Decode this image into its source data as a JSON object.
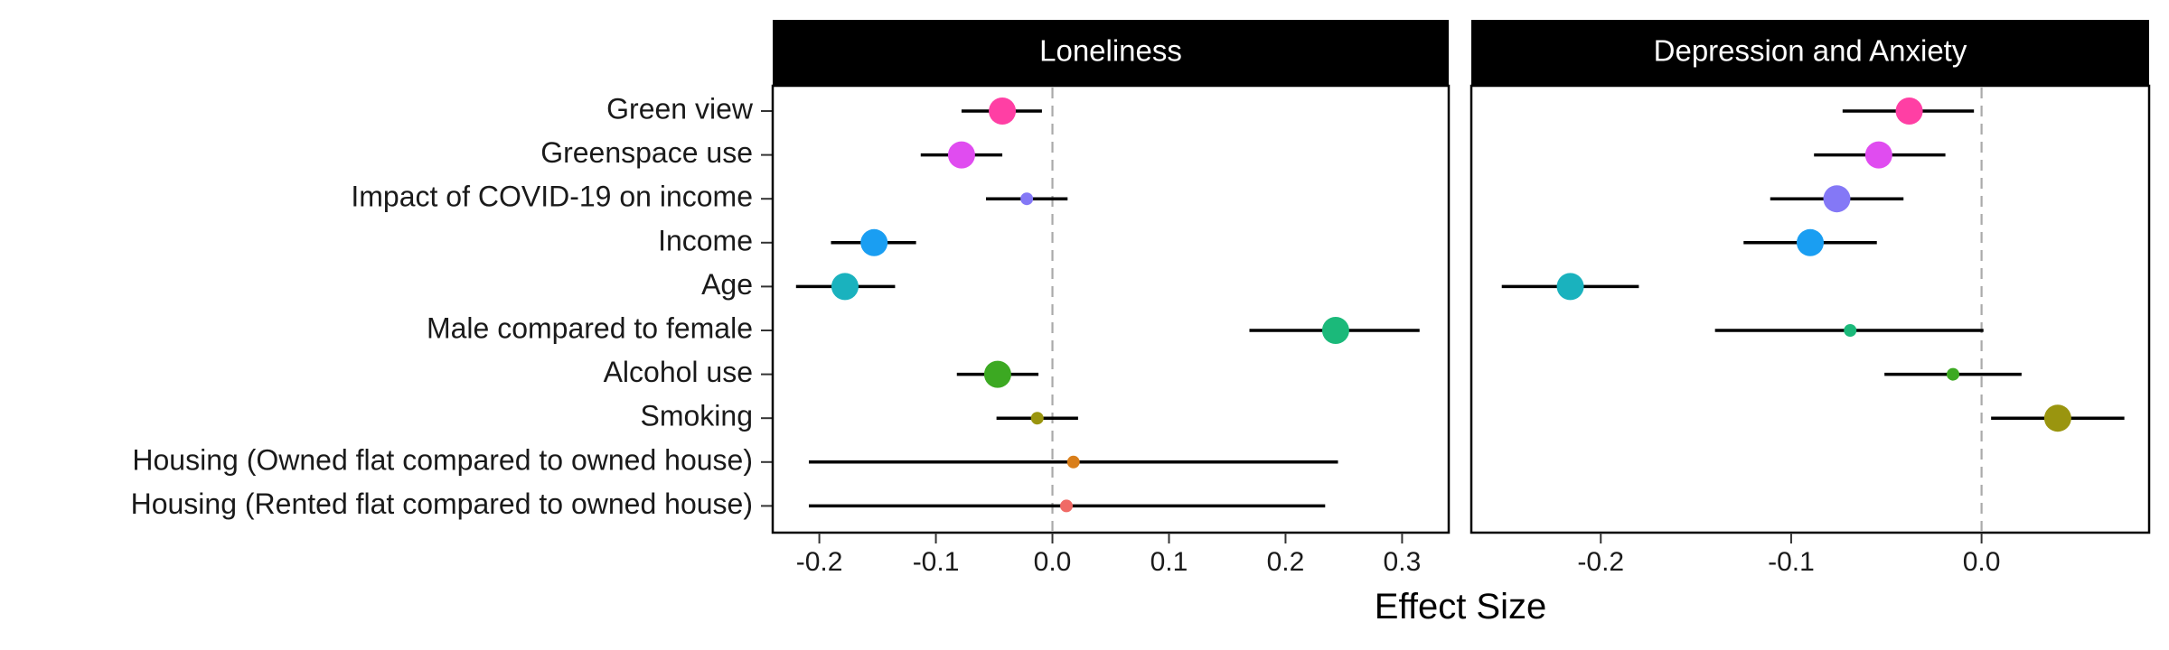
{
  "chart_data": {
    "type": "forest",
    "xlabel": "Effect Size",
    "categories": [
      "Green view",
      "Greenspace use",
      "Impact of COVID-19 on income",
      "Income",
      "Age",
      "Male compared to female",
      "Alcohol use",
      "Smoking",
      "Housing (Owned flat compared to owned house)",
      "Housing (Rented flat compared to owned house)"
    ],
    "colors": {
      "Green view": "#ff3fa4",
      "Greenspace use": "#e04cf0",
      "Impact of COVID-19 on income": "#8478f6",
      "Income": "#1a9ef2",
      "Age": "#1ab2be",
      "Male compared to female": "#1bb97a",
      "Alcohol use": "#3ca922",
      "Smoking": "#9a950f",
      "Housing (Owned flat compared to owned house)": "#d97e1a",
      "Housing (Rented flat compared to owned house)": "#f06a66"
    },
    "panels": [
      {
        "title": "Loneliness",
        "xlim": [
          -0.24,
          0.34
        ],
        "xticks": [
          -0.2,
          -0.1,
          0.0,
          0.1,
          0.2,
          0.3
        ],
        "xticklabels": [
          "-0.2",
          "-0.1",
          "0.0",
          "0.1",
          "0.2",
          "0.3"
        ],
        "reference_line": 0,
        "points": [
          {
            "label": "Green view",
            "estimate": -0.043,
            "lower": -0.078,
            "upper": -0.009,
            "size": "large"
          },
          {
            "label": "Greenspace use",
            "estimate": -0.078,
            "lower": -0.113,
            "upper": -0.043,
            "size": "large"
          },
          {
            "label": "Impact of COVID-19 on income",
            "estimate": -0.022,
            "lower": -0.057,
            "upper": 0.013,
            "size": "small"
          },
          {
            "label": "Income",
            "estimate": -0.153,
            "lower": -0.19,
            "upper": -0.117,
            "size": "large"
          },
          {
            "label": "Age",
            "estimate": -0.178,
            "lower": -0.22,
            "upper": -0.135,
            "size": "large"
          },
          {
            "label": "Male compared to female",
            "estimate": 0.243,
            "lower": 0.169,
            "upper": 0.315,
            "size": "large"
          },
          {
            "label": "Alcohol use",
            "estimate": -0.047,
            "lower": -0.082,
            "upper": -0.012,
            "size": "large"
          },
          {
            "label": "Smoking",
            "estimate": -0.013,
            "lower": -0.048,
            "upper": 0.022,
            "size": "small"
          },
          {
            "label": "Housing (Owned flat compared to owned house)",
            "estimate": 0.018,
            "lower": -0.209,
            "upper": 0.245,
            "size": "small"
          },
          {
            "label": "Housing (Rented flat compared to owned house)",
            "estimate": 0.012,
            "lower": -0.209,
            "upper": 0.234,
            "size": "small"
          }
        ]
      },
      {
        "title": "Depression and Anxiety",
        "xlim": [
          -0.268,
          0.088
        ],
        "xticks": [
          -0.2,
          -0.1,
          0.0
        ],
        "xticklabels": [
          "-0.2",
          "-0.1",
          "0.0"
        ],
        "reference_line": 0,
        "points": [
          {
            "label": "Green view",
            "estimate": -0.038,
            "lower": -0.073,
            "upper": -0.004,
            "size": "large"
          },
          {
            "label": "Greenspace use",
            "estimate": -0.054,
            "lower": -0.088,
            "upper": -0.019,
            "size": "large"
          },
          {
            "label": "Impact of COVID-19 on income",
            "estimate": -0.076,
            "lower": -0.111,
            "upper": -0.041,
            "size": "large"
          },
          {
            "label": "Income",
            "estimate": -0.09,
            "lower": -0.125,
            "upper": -0.055,
            "size": "large"
          },
          {
            "label": "Age",
            "estimate": -0.216,
            "lower": -0.252,
            "upper": -0.18,
            "size": "large"
          },
          {
            "label": "Male compared to female",
            "estimate": -0.069,
            "lower": -0.14,
            "upper": 0.001,
            "size": "small"
          },
          {
            "label": "Alcohol use",
            "estimate": -0.015,
            "lower": -0.051,
            "upper": 0.021,
            "size": "small"
          },
          {
            "label": "Smoking",
            "estimate": 0.04,
            "lower": 0.005,
            "upper": 0.075,
            "size": "large"
          }
        ]
      }
    ]
  }
}
